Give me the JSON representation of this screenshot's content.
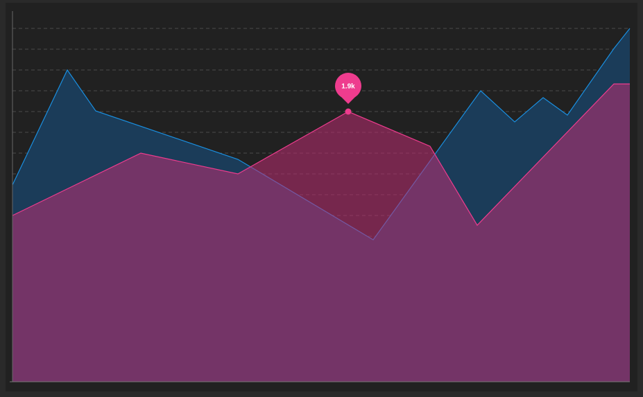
{
  "chart_data": {
    "type": "area",
    "xlim": [
      0,
      890
    ],
    "ylim": [
      600,
      2300
    ],
    "yticks": [
      700,
      800,
      900,
      1000,
      1100,
      1200,
      1300,
      1400,
      1500,
      1600,
      1700,
      1800,
      1900,
      2000,
      2100,
      2200,
      2300
    ],
    "grid": true,
    "series": [
      {
        "color": "#1a8fe0",
        "fill": "#1b3c59",
        "x": [
          0,
          79,
          120,
          325,
          520,
          675,
          724,
          765,
          800,
          867,
          890
        ],
        "values": [
          1547,
          2100,
          1903,
          1670,
          1283,
          2000,
          1850,
          1967,
          1883,
          2203,
          2300
        ]
      },
      {
        "color": "#ee3c8e",
        "fill": "rgba(190,45,115,0.55)",
        "x": [
          0,
          185,
          325,
          484,
          602,
          670,
          867,
          890
        ],
        "values": [
          1400,
          1700,
          1600,
          1900,
          1733,
          1353,
          2033,
          2033
        ],
        "value_labels": [
          null,
          null,
          null,
          "1.9k",
          null,
          null,
          null,
          null
        ]
      }
    ]
  }
}
